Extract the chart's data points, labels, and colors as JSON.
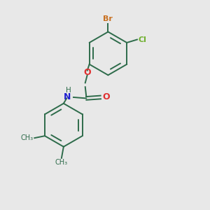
{
  "bg_color": "#e8e8e8",
  "bond_color": "#2d6b4a",
  "br_color": "#c87020",
  "cl_color": "#70b030",
  "o_color": "#e03030",
  "n_color": "#2020d0",
  "figsize": [
    3.0,
    3.0
  ],
  "dpi": 100,
  "br_label": "Br",
  "cl_label": "Cl",
  "o_label": "O",
  "carbonyl_o_label": "O",
  "h_label": "H",
  "n_label": "N",
  "me_label": "CH₃"
}
